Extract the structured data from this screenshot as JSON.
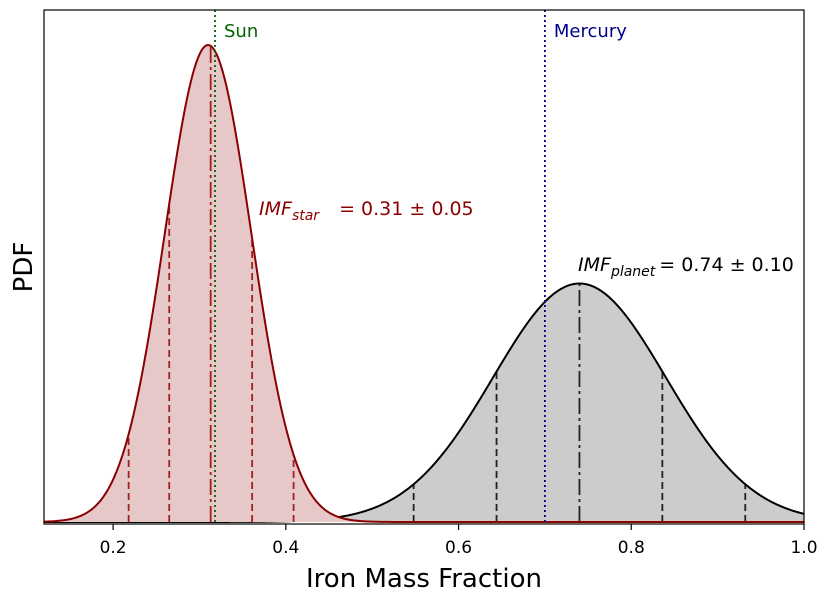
{
  "chart_data": {
    "type": "area",
    "xlabel": "Iron Mass Fraction",
    "ylabel": "PDF",
    "xlim": [
      0.12,
      1.0
    ],
    "x_ticks": [
      "0.2",
      "0.4",
      "0.6",
      "0.8",
      "1.0"
    ],
    "y_ticks_shown": false,
    "grid": false,
    "legend": "none",
    "series": [
      {
        "key": "star",
        "mean": 0.31,
        "std": 0.05,
        "relative_peak": 1.0,
        "color": "#8b0000",
        "fill": "#e6c8c8",
        "quantile_lines_x": [
          0.218,
          0.265,
          0.313,
          0.361,
          0.409
        ],
        "label_var": "IMF",
        "label_sub": "star",
        "label_value": "= 0.31 ± 0.05"
      },
      {
        "key": "planet",
        "mean": 0.74,
        "std": 0.1,
        "relative_peak": 0.5,
        "color": "#000000",
        "fill": "#cccccc",
        "quantile_lines_x": [
          0.548,
          0.644,
          0.74,
          0.836,
          0.932
        ],
        "label_var": "IMF",
        "label_sub": "planet",
        "label_value": "= 0.74 ± 0.10"
      }
    ],
    "reference_lines": [
      {
        "label": "Sun",
        "x": 0.318,
        "color": "#006400"
      },
      {
        "label": "Mercury",
        "x": 0.7,
        "color": "#00008b"
      }
    ]
  }
}
